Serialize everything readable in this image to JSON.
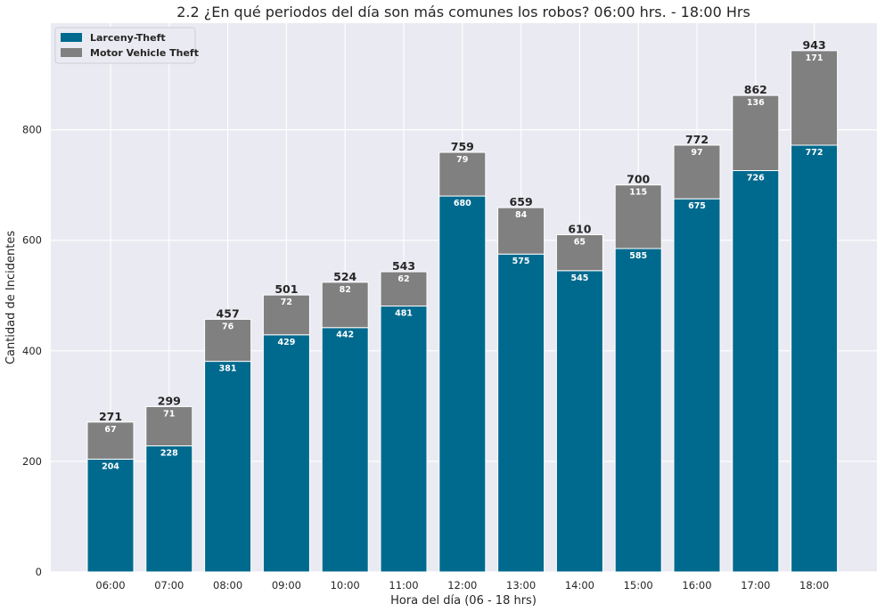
{
  "chart_data": {
    "type": "bar",
    "stacked": true,
    "title": "2.2 ¿En qué periodos del día son más comunes los robos? 06:00 hrs. - 18:00 Hrs",
    "xlabel": "Hora del día (06 - 18 hrs)",
    "ylabel": "Cantidad de Incidentes",
    "ylim": [
      0,
      980
    ],
    "yticks": [
      0,
      200,
      400,
      600,
      800
    ],
    "grid": true,
    "legend_position": "top-left",
    "categories": [
      "06:00",
      "07:00",
      "08:00",
      "09:00",
      "10:00",
      "11:00",
      "12:00",
      "13:00",
      "14:00",
      "15:00",
      "16:00",
      "17:00",
      "18:00"
    ],
    "series": [
      {
        "name": "Larceny-Theft",
        "color": "#006a8e",
        "values": [
          204,
          228,
          381,
          429,
          442,
          481,
          680,
          575,
          545,
          585,
          675,
          726,
          772
        ]
      },
      {
        "name": "Motor Vehicle Theft",
        "color": "#808080",
        "values": [
          67,
          71,
          76,
          72,
          82,
          62,
          79,
          84,
          65,
          115,
          97,
          136,
          171
        ]
      }
    ],
    "totals": [
      271,
      299,
      457,
      501,
      524,
      543,
      759,
      659,
      610,
      700,
      772,
      862,
      943
    ]
  }
}
